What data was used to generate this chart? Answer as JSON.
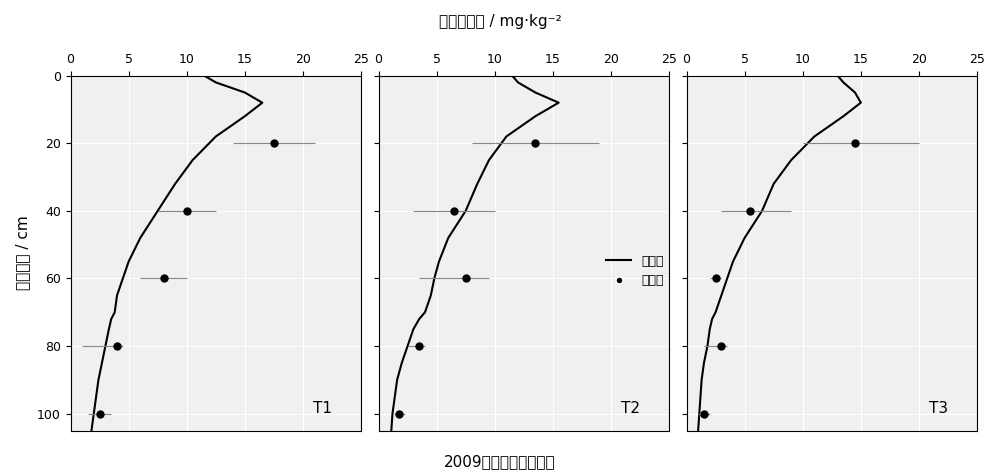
{
  "title_top": "确态氮浓度 / mg·kg⁻²",
  "ylabel": "土壤深度 / cm",
  "bottom_title": "2009年确态氮率定结果",
  "legend_sim": "模拟值",
  "legend_obs": "实测值",
  "subplots": [
    "T1",
    "T2",
    "T3"
  ],
  "xlim": [
    0,
    25
  ],
  "ylim": [
    0,
    105
  ],
  "xticks": [
    0,
    5,
    10,
    15,
    20,
    25
  ],
  "yticks": [
    0,
    20,
    40,
    60,
    80,
    100
  ],
  "sim_T1": {
    "x": [
      11.5,
      12.5,
      15.0,
      16.5,
      15.0,
      12.5,
      10.5,
      9.0,
      7.5,
      6.0,
      5.0,
      4.5,
      4.0,
      3.8,
      3.5,
      3.3,
      3.0,
      2.7,
      2.4,
      2.2,
      2.0,
      1.8
    ],
    "y": [
      0,
      2,
      5,
      8,
      12,
      18,
      25,
      32,
      40,
      48,
      55,
      60,
      65,
      70,
      72,
      75,
      80,
      85,
      90,
      95,
      100,
      105
    ]
  },
  "obs_T1": {
    "x": [
      17.5,
      10.0,
      8.0,
      4.0,
      2.5
    ],
    "y": [
      20,
      40,
      60,
      80,
      100
    ],
    "xerr_lo": [
      3.5,
      2.5,
      2.0,
      3.0,
      1.0
    ],
    "xerr_hi": [
      3.5,
      2.5,
      2.0,
      0.5,
      1.0
    ]
  },
  "sim_T2": {
    "x": [
      11.5,
      12.0,
      13.5,
      15.5,
      13.5,
      11.0,
      9.5,
      8.5,
      7.5,
      6.0,
      5.2,
      4.8,
      4.5,
      4.0,
      3.5,
      3.0,
      2.5,
      2.0,
      1.6,
      1.4,
      1.2,
      1.1
    ],
    "y": [
      0,
      2,
      5,
      8,
      12,
      18,
      25,
      32,
      40,
      48,
      55,
      60,
      65,
      70,
      72,
      75,
      80,
      85,
      90,
      95,
      100,
      105
    ]
  },
  "obs_T2": {
    "x": [
      13.5,
      6.5,
      7.5,
      3.5,
      1.8
    ],
    "y": [
      20,
      40,
      60,
      80,
      100
    ],
    "xerr_lo": [
      5.5,
      3.5,
      4.0,
      1.0,
      0.5
    ],
    "xerr_hi": [
      5.5,
      3.5,
      2.0,
      0.5,
      0.5
    ]
  },
  "sim_T3": {
    "x": [
      13.0,
      13.5,
      14.5,
      15.0,
      13.5,
      11.0,
      9.0,
      7.5,
      6.5,
      5.0,
      4.0,
      3.5,
      3.0,
      2.5,
      2.2,
      2.0,
      1.8,
      1.5,
      1.3,
      1.2,
      1.1,
      1.0
    ],
    "y": [
      0,
      2,
      5,
      8,
      12,
      18,
      25,
      32,
      40,
      48,
      55,
      60,
      65,
      70,
      72,
      75,
      80,
      85,
      90,
      95,
      100,
      105
    ]
  },
  "obs_T3": {
    "x": [
      14.5,
      5.5,
      2.5,
      3.0,
      1.5
    ],
    "y": [
      20,
      40,
      60,
      80,
      100
    ],
    "xerr_lo": [
      4.5,
      2.5,
      0.5,
      1.5,
      0.5
    ],
    "xerr_hi": [
      5.5,
      3.5,
      0.5,
      0.5,
      0.5
    ]
  },
  "background": "#f0f0f0",
  "fig_background": "#ffffff",
  "line_color": "#000000",
  "dot_color": "#000000",
  "grid_color": "#ffffff",
  "grid_lw": 0.8
}
